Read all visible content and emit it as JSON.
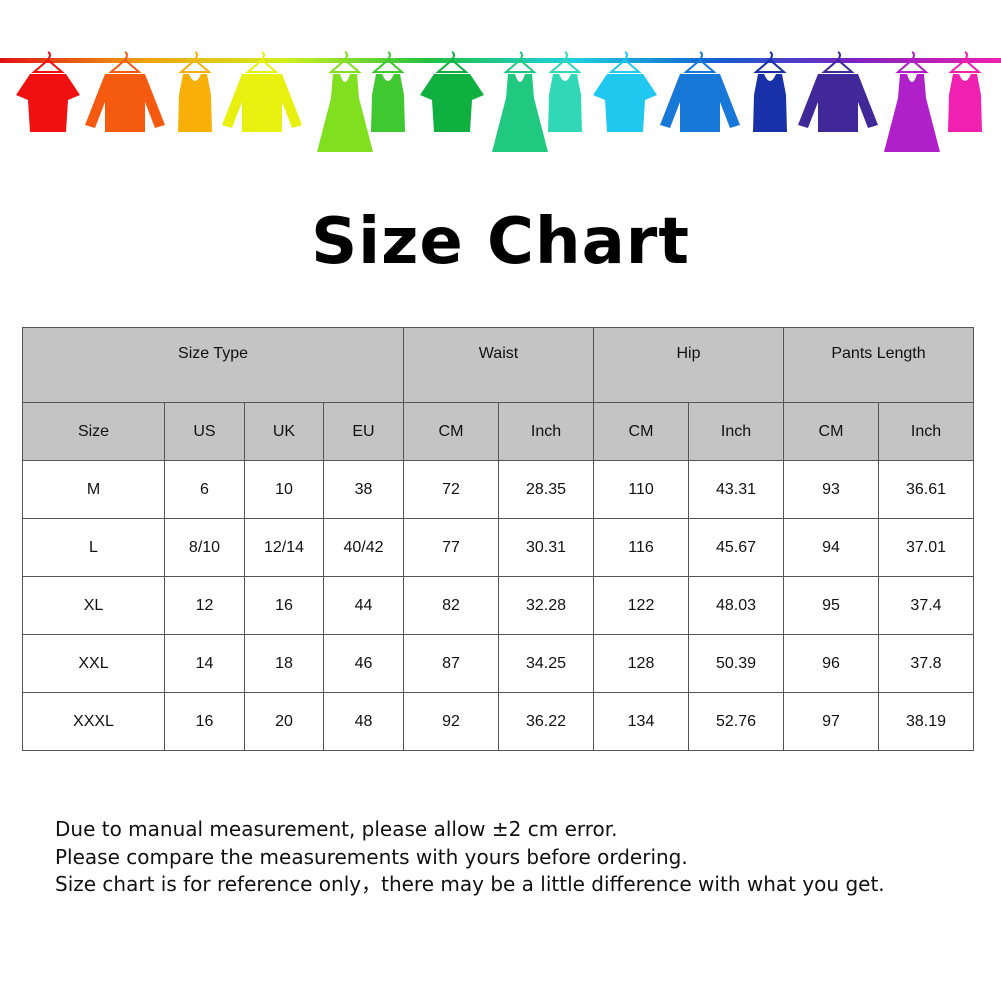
{
  "banner": {
    "clothes_colors": [
      "#f01010",
      "#f45a10",
      "#f8b008",
      "#e8f010",
      "#80e020",
      "#40c830",
      "#10b040",
      "#20c880",
      "#30d8b8",
      "#20c8f0",
      "#1878d8",
      "#1830a8",
      "#402898",
      "#b020c8",
      "#f020b0"
    ],
    "rod_gradient": [
      "#e01010",
      "#f0a010",
      "#d0f020",
      "#20c040",
      "#20d0e0",
      "#1060d0",
      "#8020c0",
      "#f020b0"
    ]
  },
  "title": "Size Chart",
  "table": {
    "group_headers": [
      "Size Type",
      "Waist",
      "Hip",
      "Pants Length"
    ],
    "sub_headers": [
      "Size",
      "US",
      "UK",
      "EU",
      "CM",
      "Inch",
      "CM",
      "Inch",
      "CM",
      "Inch"
    ],
    "rows": [
      [
        "M",
        "6",
        "10",
        "38",
        "72",
        "28.35",
        "110",
        "43.31",
        "93",
        "36.61"
      ],
      [
        "L",
        "8/10",
        "12/14",
        "40/42",
        "77",
        "30.31",
        "116",
        "45.67",
        "94",
        "37.01"
      ],
      [
        "XL",
        "12",
        "16",
        "44",
        "82",
        "32.28",
        "122",
        "48.03",
        "95",
        "37.4"
      ],
      [
        "XXL",
        "14",
        "18",
        "46",
        "87",
        "34.25",
        "128",
        "50.39",
        "96",
        "37.8"
      ],
      [
        "XXXL",
        "16",
        "20",
        "48",
        "92",
        "36.22",
        "134",
        "52.76",
        "97",
        "38.19"
      ]
    ]
  },
  "notes": [
    "Due to manual measurement, please allow ±2 cm error.",
    "Please compare the measurements with yours before ordering.",
    "Size chart is for reference only，there may be a little difference with what you get."
  ]
}
